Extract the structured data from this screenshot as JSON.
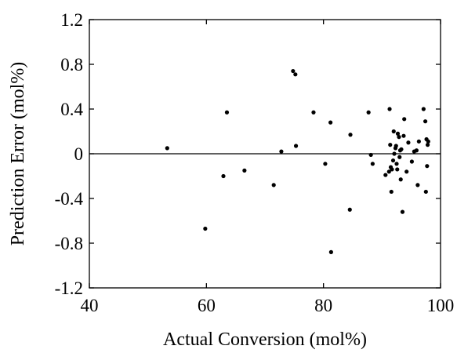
{
  "chart_data": {
    "type": "scatter",
    "title": "",
    "xlabel": "Actual Conversion (mol%)",
    "ylabel": "Prediction Error (mol%)",
    "xlim": [
      40,
      100
    ],
    "ylim": [
      -1.2,
      1.2
    ],
    "xticks": [
      40,
      60,
      80,
      100
    ],
    "xtick_labels": [
      "40",
      "60",
      "80",
      "100"
    ],
    "yticks": [
      -1.2,
      -0.8,
      -0.4,
      0,
      0.4,
      0.8,
      1.2
    ],
    "ytick_labels": [
      "-1.2",
      "-0.8",
      "-0.4",
      "0",
      "0.4",
      "0.8",
      "1.2"
    ],
    "grid": false,
    "reference_line_y": 0,
    "colors": {
      "points": "#000000",
      "axes": "#000000",
      "background": "#ffffff"
    },
    "points": [
      {
        "x": 53.3,
        "y": 0.05
      },
      {
        "x": 59.8,
        "y": -0.67
      },
      {
        "x": 62.9,
        "y": -0.2
      },
      {
        "x": 63.5,
        "y": 0.37
      },
      {
        "x": 66.5,
        "y": -0.15
      },
      {
        "x": 71.5,
        "y": -0.28
      },
      {
        "x": 72.8,
        "y": 0.02
      },
      {
        "x": 74.8,
        "y": 0.74
      },
      {
        "x": 75.2,
        "y": 0.71
      },
      {
        "x": 75.3,
        "y": 0.07
      },
      {
        "x": 78.3,
        "y": 0.37
      },
      {
        "x": 80.3,
        "y": -0.09
      },
      {
        "x": 81.2,
        "y": 0.28
      },
      {
        "x": 81.3,
        "y": -0.88
      },
      {
        "x": 84.5,
        "y": -0.5
      },
      {
        "x": 84.6,
        "y": 0.17
      },
      {
        "x": 87.7,
        "y": 0.37
      },
      {
        "x": 88.1,
        "y": -0.01
      },
      {
        "x": 88.4,
        "y": -0.09
      },
      {
        "x": 90.6,
        "y": -0.19
      },
      {
        "x": 91.2,
        "y": -0.16
      },
      {
        "x": 91.3,
        "y": 0.4
      },
      {
        "x": 91.4,
        "y": 0.08
      },
      {
        "x": 91.5,
        "y": -0.12
      },
      {
        "x": 91.6,
        "y": -0.34
      },
      {
        "x": 91.7,
        "y": -0.14
      },
      {
        "x": 91.9,
        "y": -0.06
      },
      {
        "x": 92.0,
        "y": 0.2
      },
      {
        "x": 92.1,
        "y": 0.0
      },
      {
        "x": 92.3,
        "y": 0.05
      },
      {
        "x": 92.4,
        "y": 0.07
      },
      {
        "x": 92.5,
        "y": -0.09
      },
      {
        "x": 92.6,
        "y": -0.14
      },
      {
        "x": 92.7,
        "y": 0.18
      },
      {
        "x": 92.9,
        "y": 0.15
      },
      {
        "x": 93.0,
        "y": -0.03
      },
      {
        "x": 93.1,
        "y": 0.03
      },
      {
        "x": 93.2,
        "y": -0.23
      },
      {
        "x": 93.3,
        "y": 0.04
      },
      {
        "x": 93.5,
        "y": -0.52
      },
      {
        "x": 93.7,
        "y": 0.16
      },
      {
        "x": 93.8,
        "y": 0.31
      },
      {
        "x": 94.2,
        "y": -0.16
      },
      {
        "x": 94.5,
        "y": 0.1
      },
      {
        "x": 95.1,
        "y": -0.07
      },
      {
        "x": 95.5,
        "y": 0.02
      },
      {
        "x": 95.9,
        "y": 0.03
      },
      {
        "x": 96.1,
        "y": -0.28
      },
      {
        "x": 96.3,
        "y": 0.11
      },
      {
        "x": 97.1,
        "y": 0.4
      },
      {
        "x": 97.4,
        "y": 0.29
      },
      {
        "x": 97.5,
        "y": -0.34
      },
      {
        "x": 97.6,
        "y": 0.13
      },
      {
        "x": 97.7,
        "y": -0.11
      },
      {
        "x": 97.8,
        "y": 0.08
      },
      {
        "x": 97.9,
        "y": 0.11
      }
    ]
  }
}
